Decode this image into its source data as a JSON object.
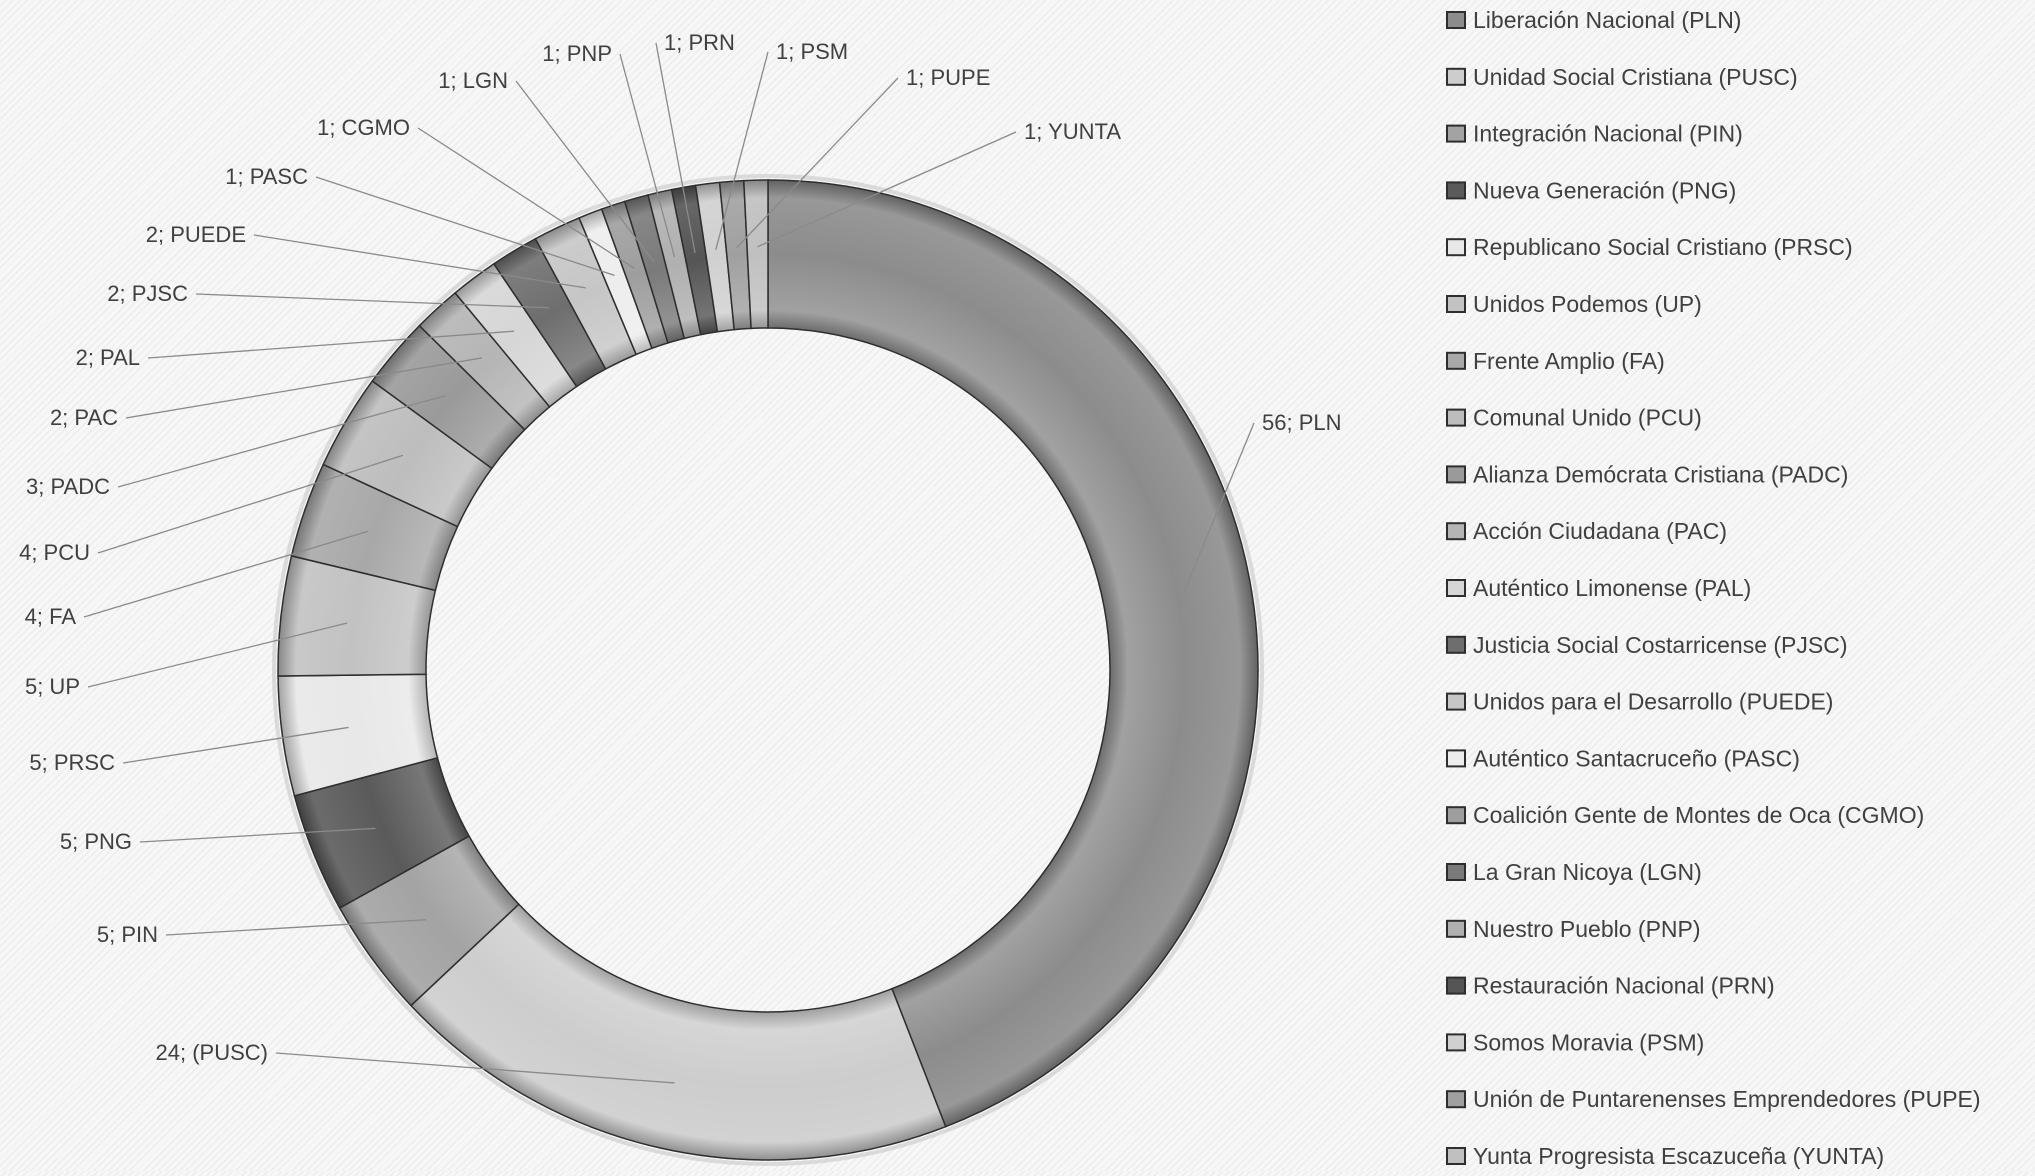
{
  "chart_data": {
    "type": "pie",
    "donut": true,
    "title": "",
    "legend_position": "right",
    "label_format": "value; short",
    "slices": [
      {
        "short": "PLN",
        "label": "56; PLN",
        "name": "Liberación Nacional (PLN)",
        "value": 56,
        "color": "#8c8c8c"
      },
      {
        "short": "PUSC",
        "label": "24; (PUSC)",
        "name": "Unidad Social Cristiana (PUSC)",
        "value": 24,
        "color": "#cdcdcd"
      },
      {
        "short": "PIN",
        "label": "5; PIN",
        "name": "Integración Nacional (PIN)",
        "value": 5,
        "color": "#a3a3a3"
      },
      {
        "short": "PNG",
        "label": "5; PNG",
        "name": "Nueva Generación (PNG)",
        "value": 5,
        "color": "#5a5a5a"
      },
      {
        "short": "PRSC",
        "label": "5; PRSC",
        "name": "Republicano Social Cristiano (PRSC)",
        "value": 5,
        "color": "#e8e8e8"
      },
      {
        "short": "UP",
        "label": "5; UP",
        "name": "Unidos Podemos (UP)",
        "value": 5,
        "color": "#c2c2c2"
      },
      {
        "short": "FA",
        "label": "4; FA",
        "name": "Frente Amplio (FA)",
        "value": 4,
        "color": "#a8a8a8"
      },
      {
        "short": "PCU",
        "label": "4; PCU",
        "name": "Comunal Unido (PCU)",
        "value": 4,
        "color": "#bdbdbd"
      },
      {
        "short": "PADC",
        "label": "3; PADC",
        "name": "Alianza Demócrata Cristiana (PADC)",
        "value": 3,
        "color": "#9a9a9a"
      },
      {
        "short": "PAC",
        "label": "2; PAC",
        "name": "Acción Ciudadana (PAC)",
        "value": 2,
        "color": "#b5b5b5"
      },
      {
        "short": "PAL",
        "label": "2; PAL",
        "name": "Auténtico Limonense (PAL)",
        "value": 2,
        "color": "#d6d6d6"
      },
      {
        "short": "PJSC",
        "label": "2; PJSC",
        "name": "Justicia Social Costarricense (PJSC)",
        "value": 2,
        "color": "#6e6e6e"
      },
      {
        "short": "PUEDE",
        "label": "2; PUEDE",
        "name": "Unidos para el Desarrollo (PUEDE)",
        "value": 2,
        "color": "#c6c6c6"
      },
      {
        "short": "PASC",
        "label": "1; PASC",
        "name": "Auténtico Santacruceño (PASC)",
        "value": 1,
        "color": "#ededed"
      },
      {
        "short": "CGMO",
        "label": "1; CGMO",
        "name": "Coalición Gente de Montes de Oca (CGMO)",
        "value": 1,
        "color": "#9e9e9e"
      },
      {
        "short": "LGN",
        "label": "1; LGN",
        "name": "La Gran Nicoya (LGN)",
        "value": 1,
        "color": "#7a7a7a"
      },
      {
        "short": "PNP",
        "label": "1; PNP",
        "name": "Nuestro Pueblo (PNP)",
        "value": 1,
        "color": "#b0b0b0"
      },
      {
        "short": "PRN",
        "label": "1; PRN",
        "name": "Restauración Nacional (PRN)",
        "value": 1,
        "color": "#555555"
      },
      {
        "short": "PSM",
        "label": "1; PSM",
        "name": "Somos Moravia (PSM)",
        "value": 1,
        "color": "#d0d0d0"
      },
      {
        "short": "PUPE",
        "label": "1; PUPE",
        "name": "Unión de Puntarenenses Emprendedores (PUPE)",
        "value": 1,
        "color": "#a0a0a0"
      },
      {
        "short": "YUNTA",
        "label": "1; YUNTA",
        "name": "Yunta Progresista Escazuceña (YUNTA)",
        "value": 1,
        "color": "#c0c0c0"
      }
    ]
  }
}
